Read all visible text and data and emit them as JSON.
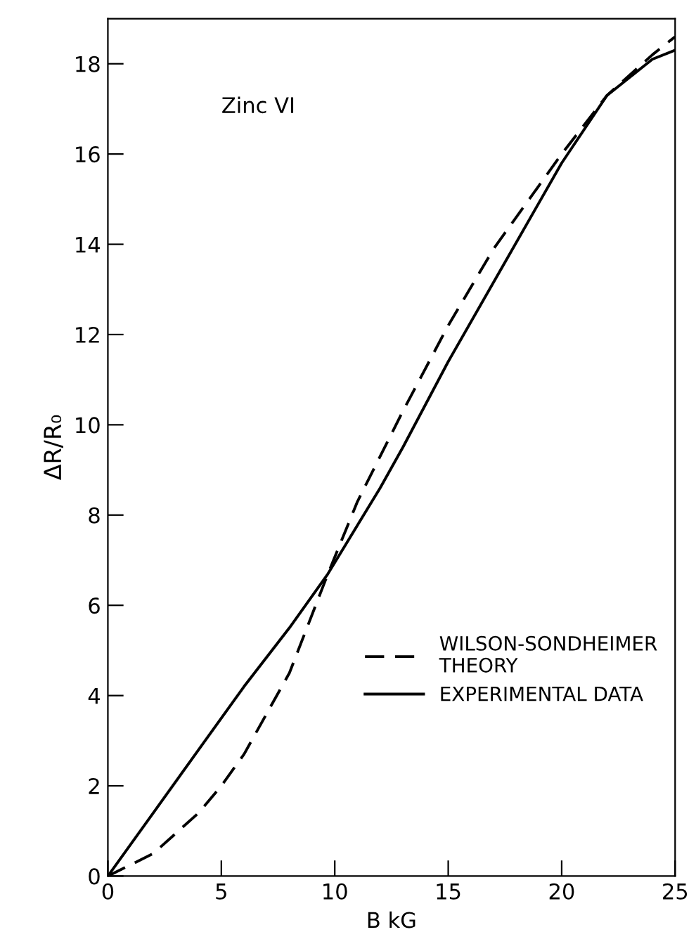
{
  "chart_data": {
    "type": "line",
    "xlabel": "B kG",
    "ylabel": "ΔR/R₀",
    "annotations": [
      "Zinc VI"
    ],
    "xlim": [
      0,
      25
    ],
    "ylim": [
      0,
      19
    ],
    "xticks": [
      0,
      5,
      10,
      15,
      20,
      25
    ],
    "yticks": [
      0,
      2,
      4,
      6,
      8,
      10,
      12,
      14,
      16,
      18
    ],
    "grid": false,
    "legend": "right",
    "marker": "none",
    "series": [
      {
        "name": "WILSON-SONDHEIMER\nTHEORY",
        "color": "#000000",
        "line_style": "dashed",
        "x": [
          0,
          2,
          4,
          5,
          6,
          8,
          9.7,
          11,
          13,
          15,
          17,
          19,
          20,
          22,
          24,
          25
        ],
        "values": [
          0,
          0.5,
          1.4,
          2.0,
          2.7,
          4.5,
          6.7,
          8.3,
          10.3,
          12.2,
          13.9,
          15.3,
          16.0,
          17.3,
          18.2,
          18.6
        ]
      },
      {
        "name": "EXPERIMENTAL DATA",
        "color": "#000000",
        "line_style": "solid",
        "x": [
          0,
          2,
          4,
          6,
          8,
          9.7,
          12,
          13,
          15,
          17.5,
          20,
          22,
          24,
          25
        ],
        "values": [
          0,
          1.4,
          2.8,
          4.2,
          5.5,
          6.7,
          8.6,
          9.5,
          11.4,
          13.6,
          15.8,
          17.3,
          18.1,
          18.3
        ]
      }
    ]
  }
}
